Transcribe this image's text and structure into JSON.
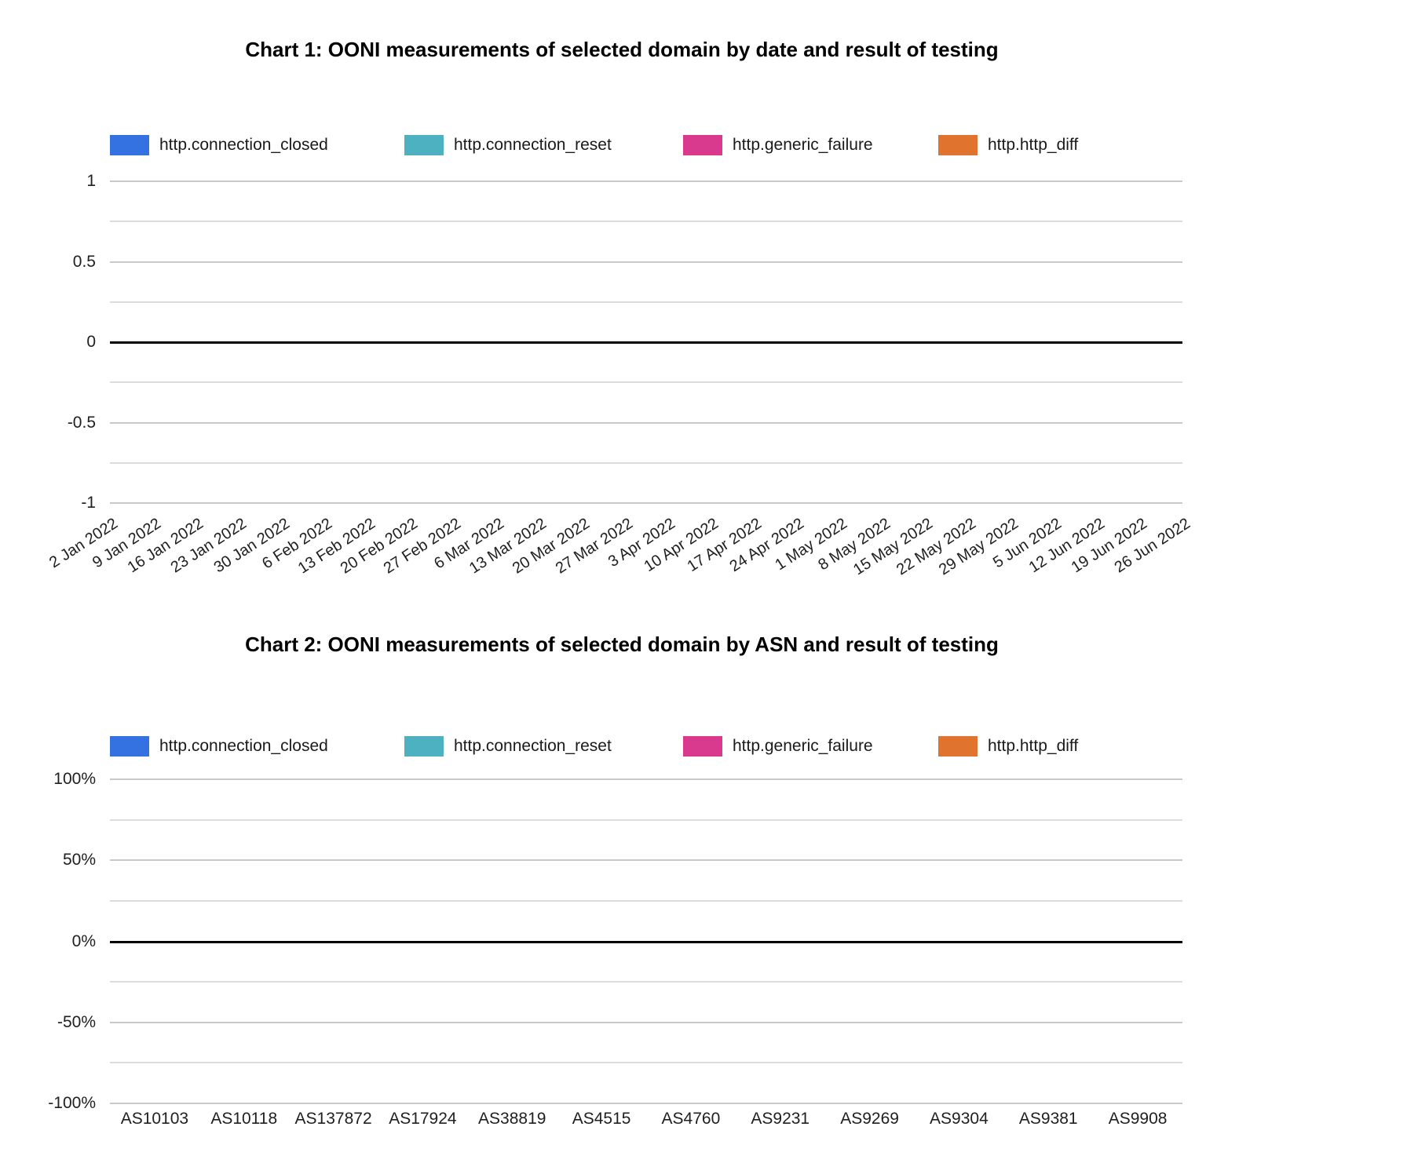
{
  "chart_data": [
    {
      "id": "chart-1",
      "type": "bar",
      "title": "Chart 1: OONI measurements of selected domain by date and result of testing",
      "legend_position": "top",
      "grid": true,
      "style": {
        "background": "#ffffff",
        "gridline_color": "#c9c9c9",
        "minor_gridline_color": "#dcdcdc",
        "baseline_color": "#000000"
      },
      "x_axis": {
        "rotated_labels": true,
        "labels": [
          "2 Jan 2022",
          "9 Jan 2022",
          "16 Jan 2022",
          "23 Jan 2022",
          "30 Jan 2022",
          "6 Feb 2022",
          "13 Feb 2022",
          "20 Feb 2022",
          "27 Feb 2022",
          "6 Mar 2022",
          "13 Mar 2022",
          "20 Mar 2022",
          "27 Mar 2022",
          "3 Apr 2022",
          "10 Apr 2022",
          "17 Apr 2022",
          "24 Apr 2022",
          "1 May 2022",
          "8 May 2022",
          "15 May 2022",
          "22 May 2022",
          "29 May 2022",
          "5 Jun 2022",
          "12 Jun 2022",
          "19 Jun 2022",
          "26 Jun 2022"
        ]
      },
      "y_axis": {
        "range": [
          -1,
          1
        ],
        "baseline_value": 0,
        "ticks": [
          {
            "label": "1",
            "value": 1
          },
          {
            "label": "0.5",
            "value": 0.5
          },
          {
            "label": "0",
            "value": 0
          },
          {
            "label": "-0.5",
            "value": -0.5
          },
          {
            "label": "-1",
            "value": -1
          }
        ],
        "minor_tick_values": [
          0.75,
          0.25,
          -0.25,
          -0.75
        ]
      },
      "series": [
        {
          "name": "http.connection_closed",
          "color": "#3372E0",
          "values": []
        },
        {
          "name": "http.connection_reset",
          "color": "#4DB1C2",
          "values": []
        },
        {
          "name": "http.generic_failure",
          "color": "#D93A8D",
          "values": []
        },
        {
          "name": "http.http_diff",
          "color": "#E0742E",
          "values": []
        }
      ]
    },
    {
      "id": "chart-2",
      "type": "bar",
      "title": "Chart 2: OONI measurements of selected domain by ASN and result of testing",
      "legend_position": "top",
      "grid": true,
      "style": {
        "background": "#ffffff",
        "gridline_color": "#c9c9c9",
        "minor_gridline_color": "#dcdcdc",
        "baseline_color": "#000000"
      },
      "x_axis": {
        "rotated_labels": false,
        "labels": [
          "AS10103",
          "AS10118",
          "AS137872",
          "AS17924",
          "AS38819",
          "AS4515",
          "AS4760",
          "AS9231",
          "AS9269",
          "AS9304",
          "AS9381",
          "AS9908"
        ]
      },
      "y_axis": {
        "range": [
          -100,
          100
        ],
        "baseline_value": 0,
        "ticks": [
          {
            "label": "100%",
            "value": 100
          },
          {
            "label": "50%",
            "value": 50
          },
          {
            "label": "0%",
            "value": 0
          },
          {
            "label": "-50%",
            "value": -50
          },
          {
            "label": "-100%",
            "value": -100
          }
        ],
        "minor_tick_values": [
          75,
          25,
          -25,
          -75
        ]
      },
      "series": [
        {
          "name": "http.connection_closed",
          "color": "#3372E0",
          "values": []
        },
        {
          "name": "http.connection_reset",
          "color": "#4DB1C2",
          "values": []
        },
        {
          "name": "http.generic_failure",
          "color": "#D93A8D",
          "values": []
        },
        {
          "name": "http.http_diff",
          "color": "#E0742E",
          "values": []
        }
      ]
    }
  ]
}
